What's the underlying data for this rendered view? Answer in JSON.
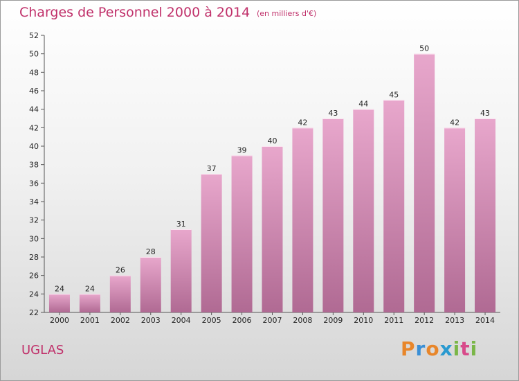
{
  "title": "Charges de Personnel 2000 à 2014",
  "subtitle": "(en milliers d'€)",
  "commune": "UGLAS",
  "logo": {
    "letters": [
      "P",
      "r",
      "o",
      "x",
      "i",
      "t",
      "i"
    ],
    "colors": [
      "#e8862a",
      "#3a8fd6",
      "#e8862a",
      "#2a9ad0",
      "#7ab648",
      "#d84a8a",
      "#7ab648"
    ]
  },
  "colors": {
    "bar_top": "#e8a7cc",
    "bar_bottom": "#b06a93",
    "text_accent": "#c0306a"
  },
  "chart_data": {
    "type": "bar",
    "categories": [
      "2000",
      "2001",
      "2002",
      "2003",
      "2004",
      "2005",
      "2006",
      "2007",
      "2008",
      "2009",
      "2010",
      "2011",
      "2012",
      "2013",
      "2014"
    ],
    "values": [
      24,
      24,
      26,
      28,
      31,
      37,
      39,
      40,
      42,
      43,
      44,
      45,
      50,
      42,
      43
    ],
    "ylim": [
      22,
      52
    ],
    "yticks": [
      22,
      24,
      26,
      28,
      30,
      32,
      34,
      36,
      38,
      40,
      42,
      44,
      46,
      48,
      50,
      52
    ],
    "grid": false,
    "xlabel": "",
    "ylabel": ""
  }
}
